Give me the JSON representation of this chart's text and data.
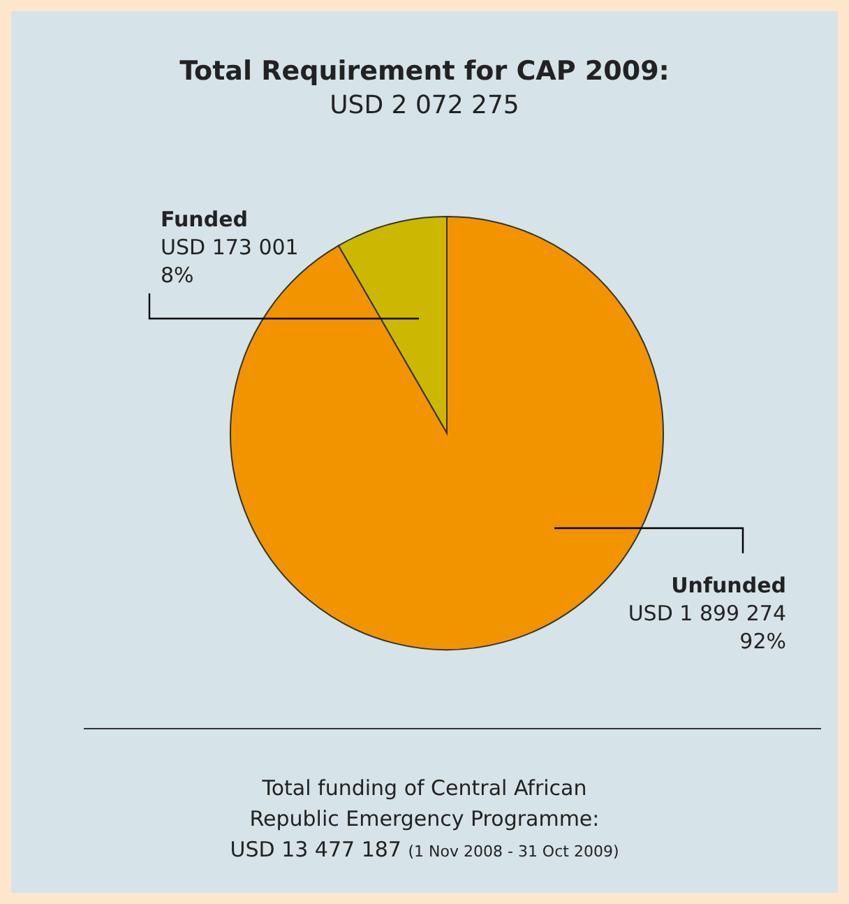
{
  "chart_data": {
    "type": "pie",
    "title": "Total Requirement for CAP 2009:",
    "subtitle": "USD 2 072 275",
    "categories": [
      "Funded",
      "Unfunded"
    ],
    "values": [
      173001,
      1899274
    ],
    "colors": [
      "#ccb800",
      "#f29400"
    ],
    "value_labels": [
      "USD 173 001\n8%",
      "USD 1 899 274\n92%"
    ],
    "legend": false,
    "annotations": [
      "Total funding of Central African Republic Emergency Programme:",
      "USD 13 477 187",
      "(1 Nov 2008 - 31 Oct 2009)"
    ]
  }
}
